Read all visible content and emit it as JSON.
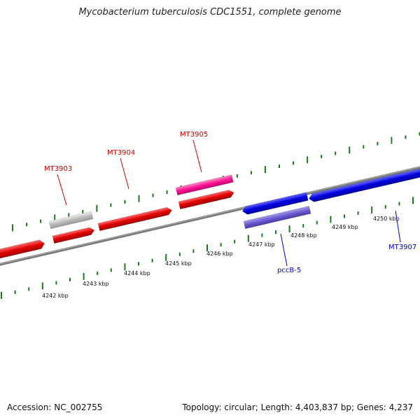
{
  "title": "Mycobacterium tuberculosis CDC1551, complete genome",
  "footer": {
    "accession": "Accession: NC_002755",
    "stats": "Topology: circular; Length: 4,403,837 bp; Genes: 4,237"
  },
  "colors": {
    "forward_cds": "#e00000",
    "reverse_cds": "#0000dd",
    "gene_pink": "#ff1493",
    "gene_gray": "#bbbbbb",
    "gene_slate": "#6a5acd",
    "backbone": "#888888",
    "tick": "#1a7a1a",
    "label_forward": "#cc0000",
    "label_reverse": "#0000cc"
  },
  "scale_labels": [
    "4242 kbp",
    "4243 kbp",
    "4244 kbp",
    "4245 kbp",
    "4246 kbp",
    "4247 kbp",
    "4248 kbp",
    "4249 kbp",
    "4250 kbp"
  ],
  "gene_labels": [
    {
      "id": "MT3903",
      "strand": "forward"
    },
    {
      "id": "MT3904",
      "strand": "forward"
    },
    {
      "id": "MT3905",
      "strand": "forward"
    },
    {
      "id": "pccB-5",
      "strand": "reverse"
    },
    {
      "id": "MT3907",
      "strand": "reverse"
    }
  ]
}
